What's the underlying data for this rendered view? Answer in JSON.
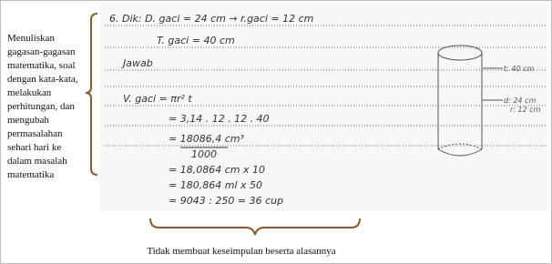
{
  "left_note": {
    "lines": [
      "Menuliskan",
      "gagasan-gagasan",
      "matematika, soal",
      "dengan kata-kata,",
      "melakukan",
      "perhitungan, dan",
      "mengubah",
      "permasalahan",
      "sehari hari ke",
      "dalam masalah",
      "matematika"
    ]
  },
  "work": {
    "lines": [
      "6. Dik: D. gaci = 24 cm → r.gaci = 12 cm",
      "T. gaci = 40 cm",
      "Jawab",
      "V. gaci = πr² t",
      "= 3,14 . 12 . 12 . 40",
      "= 18086,4 cm³",
      "1000",
      "= 18,0864 cm x 10",
      "= 180,864 ml x 50",
      "= 9043 : 250 = 36 cup"
    ]
  },
  "diagram": {
    "labels": [
      "t: 40 cm",
      "d: 24 cm",
      "r: 12 cm"
    ]
  },
  "bottom_note": "Tidak membuat keseimpulan beserta alasannya"
}
